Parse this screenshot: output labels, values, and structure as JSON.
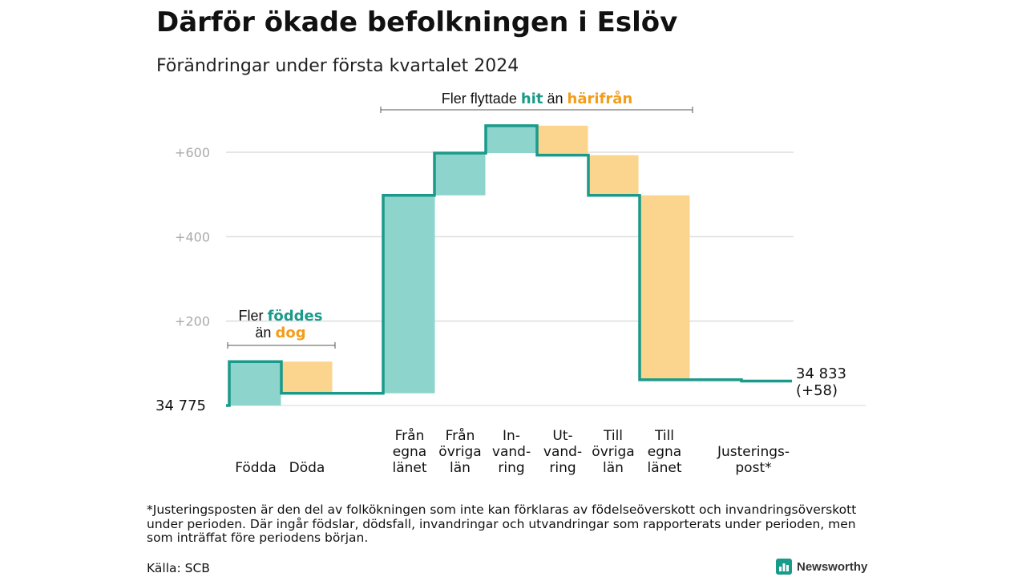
{
  "title": "Därför ökade befolkningen i Eslöv",
  "subtitle": "Förändringar under första kvartalet 2024",
  "colors": {
    "increase": "#8dd4cc",
    "decrease": "#fbd58e",
    "line": "#1a9a8a",
    "accent_teal": "#1a9a8a",
    "accent_orange": "#f29d1b",
    "grid": "#dddddd",
    "tick_text": "#aaaaaa"
  },
  "callouts": {
    "migration": {
      "pre": "Fler flyttade",
      "hi1": "hit",
      "mid": "än",
      "hi2": "härifrån"
    },
    "natural": {
      "pre": "Fler",
      "hi1": "föddes",
      "mid": "än",
      "hi2": "dog"
    }
  },
  "chart_data": {
    "type": "waterfall",
    "start_value": 34775,
    "start_label": "34  775",
    "end_value": 34833,
    "end_label_lines": [
      "34 833",
      "(+58)"
    ],
    "y_axis": {
      "min": -2,
      "max": 700,
      "ticks": [
        {
          "value": 200,
          "label": "+200"
        },
        {
          "value": 400,
          "label": "+400"
        },
        {
          "value": 600,
          "label": "+600"
        }
      ],
      "grid": true
    },
    "steps": [
      {
        "label_lines": [
          "Födda"
        ],
        "change": 104,
        "cumulative": 104
      },
      {
        "label_lines": [
          "Döda"
        ],
        "change": -75,
        "cumulative": 29
      },
      {
        "label_lines": [
          "Från",
          "egna",
          "länet"
        ],
        "change": 469,
        "cumulative": 498
      },
      {
        "label_lines": [
          "Från",
          "övriga",
          "län"
        ],
        "change": 100,
        "cumulative": 598
      },
      {
        "label_lines": [
          "In-",
          "vand-",
          "ring"
        ],
        "change": 65,
        "cumulative": 663
      },
      {
        "label_lines": [
          "Ut-",
          "vand-",
          "ring"
        ],
        "change": -70,
        "cumulative": 593
      },
      {
        "label_lines": [
          "Till",
          "övriga",
          "län"
        ],
        "change": -95,
        "cumulative": 498
      },
      {
        "label_lines": [
          "Till",
          "egna",
          "länet"
        ],
        "change": -437,
        "cumulative": 61
      },
      {
        "label_lines": [
          "Justerings-",
          "post*"
        ],
        "change": -3,
        "cumulative": 58
      }
    ]
  },
  "footnote": "*Justeringsposten är den del av folkökningen som inte kan förklaras av födelseöverskott och invandringsöverskott under perioden. Där ingår födslar, dödsfall, invandringar och utvandringar som rapporterats under perioden, men som inträffat före periodens början.",
  "source": "Källa: SCB",
  "brand": {
    "name": "Newsworthy",
    "icon": "newsworthy-logo-icon"
  }
}
